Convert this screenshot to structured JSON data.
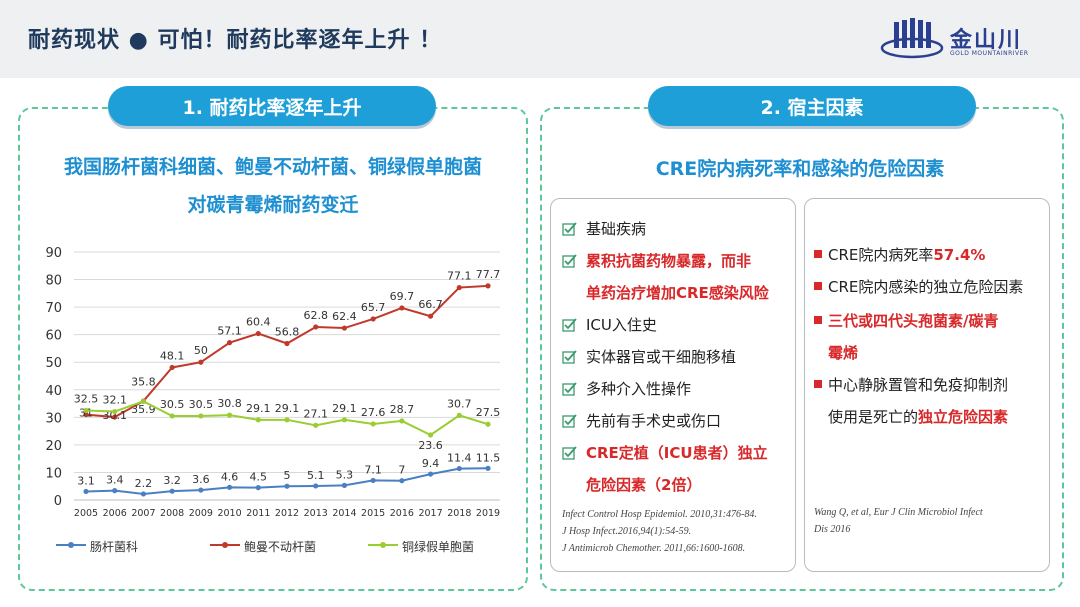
{
  "header": {
    "title": "耐药现状 ● 可怕！耐药比率逐年上升 ！",
    "logo_text": "金山川",
    "logo_sub": "GOLD MOUNTAINRIVER"
  },
  "left": {
    "pill": "1. 耐药比率逐年上升",
    "subtitle_1": "我国肠杆菌科细菌、鲍曼不动杆菌、铜绿假单胞菌",
    "subtitle_2": "对碳青霉烯耐药变迁"
  },
  "right": {
    "pill": "2. 宿主因素",
    "subtitle": "CRE院内病死率和感染的危险因素",
    "risk_items": [
      {
        "text": "基础疾病",
        "red": false
      },
      {
        "text": "累积抗菌药物暴露，而非",
        "red": true
      },
      {
        "text": "单药治疗增加CRE感染风险",
        "red": true
      },
      {
        "text": "ICU入住史",
        "red": false
      },
      {
        "text": "实体器官或干细胞移植",
        "red": false
      },
      {
        "text": "多种介入性操作",
        "red": false
      },
      {
        "text": "先前有手术史或伤口",
        "red": false
      },
      {
        "text": "CRE定植（ICU患者）独立",
        "red": true
      },
      {
        "text": "危险因素（2倍）",
        "red": true
      }
    ],
    "refs": [
      "Infect Control Hosp Epidemiol. 2010,31:476-84.",
      "J Hosp Infect.2016,94(1):54-59.",
      "J Antimicrob Chemother. 2011,66:1600-1608."
    ],
    "bullets": {
      "b1_prefix": "CRE院内病死率",
      "b1_value": "57.4%",
      "b2": "CRE院内感染的独立危险因素",
      "b3_line1": "三代或四代头孢菌素/碳青",
      "b3_line2": "霉烯",
      "b4_line1": "中心静脉置管和免疫抑制剂",
      "b4_line2_prefix": "使用是死亡的",
      "b4_line2_red": "独立危险因素"
    },
    "ref2": [
      "Wang Q, et al, Eur J Clin Microbiol Infect",
      "Dis 2016"
    ]
  },
  "chart_data": {
    "type": "line",
    "x": [
      "2005",
      "2006",
      "2007",
      "2008",
      "2009",
      "2010",
      "2011",
      "2012",
      "2013",
      "2014",
      "2015",
      "2016",
      "2017",
      "2018",
      "2019"
    ],
    "ylim": [
      0,
      90
    ],
    "yticks": [
      0,
      10,
      20,
      30,
      40,
      50,
      60,
      70,
      80,
      90
    ],
    "grid": true,
    "legend_position": "bottom",
    "series": [
      {
        "name": "肠杆菌科",
        "color": "#4a7fc1",
        "values": [
          3.1,
          3.4,
          2.2,
          3.2,
          3.6,
          4.6,
          4.5,
          5,
          5.1,
          5.3,
          7.1,
          7,
          9.4,
          11.4,
          11.5
        ]
      },
      {
        "name": "鲍曼不动杆菌",
        "color": "#c0392b",
        "values": [
          31,
          30.1,
          35.9,
          48.1,
          50,
          57.1,
          60.4,
          56.8,
          62.8,
          62.4,
          65.7,
          69.7,
          66.7,
          77.1,
          77.7
        ]
      },
      {
        "name": "铜绿假单胞菌",
        "color": "#9acd32",
        "values": [
          32.5,
          32.1,
          35.8,
          30.5,
          30.5,
          30.8,
          29.1,
          29.1,
          27.1,
          29.1,
          27.6,
          28.7,
          23.6,
          30.7,
          27.5
        ]
      }
    ]
  }
}
